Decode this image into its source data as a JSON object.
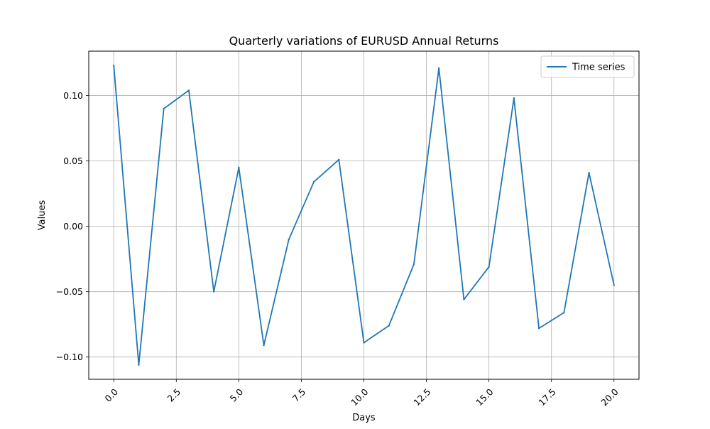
{
  "chart_data": {
    "type": "line",
    "title": "Quarterly variations of  EURUSD Annual Returns",
    "xlabel": "Days",
    "ylabel": "Values",
    "xlim": [
      -1.0,
      21.0
    ],
    "ylim": [
      -0.117,
      0.134
    ],
    "xticks": [
      0.0,
      2.5,
      5.0,
      7.5,
      10.0,
      12.5,
      15.0,
      17.5,
      20.0
    ],
    "xtick_labels": [
      "0.0",
      "2.5",
      "5.0",
      "7.5",
      "10.0",
      "12.5",
      "15.0",
      "17.5",
      "20.0"
    ],
    "xtick_rotation": 45,
    "yticks": [
      -0.1,
      -0.05,
      0.0,
      0.05,
      0.1
    ],
    "ytick_labels": [
      "−0.10",
      "−0.05",
      "0.00",
      "0.05",
      "0.10"
    ],
    "grid": true,
    "legend": {
      "position": "top-right"
    },
    "series": [
      {
        "name": "Time series",
        "color": "#1f77b4",
        "x": [
          0,
          1,
          2,
          3,
          4,
          5,
          6,
          7,
          8,
          9,
          10,
          11,
          12,
          13,
          14,
          15,
          16,
          17,
          18,
          19,
          20
        ],
        "values": [
          0.123,
          -0.106,
          0.09,
          0.104,
          -0.05,
          0.045,
          -0.091,
          -0.01,
          0.034,
          0.051,
          -0.089,
          -0.076,
          -0.029,
          0.121,
          -0.056,
          -0.031,
          0.098,
          -0.078,
          -0.066,
          0.041,
          -0.045
        ]
      }
    ]
  }
}
